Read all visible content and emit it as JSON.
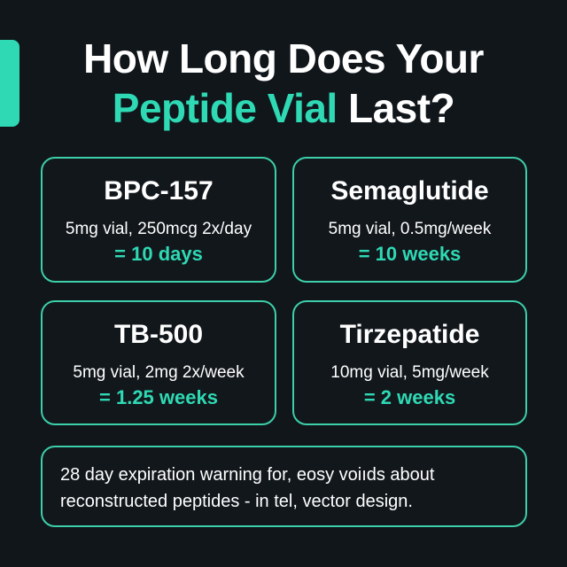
{
  "header": {
    "title_line1": "How Long Does Your",
    "title_line2_accent": "Peptide Vial",
    "title_line2_rest": " Last?"
  },
  "cards": [
    {
      "name": "BPC-157",
      "detail": "5mg vial, 250mcg 2x/day",
      "result": "= 10 days"
    },
    {
      "name": "Semaglutide",
      "detail": "5mg vial, 0.5mg/week",
      "result": "= 10 weeks"
    },
    {
      "name": "TB-500",
      "detail": "5mg vial, 2mg 2x/week",
      "result": "= 1.25 weeks"
    },
    {
      "name": "Tirzepatide",
      "detail": "10mg vial, 5mg/week",
      "result": "= 2 weeks"
    }
  ],
  "note": {
    "line1": "28 day expiration warning for, eosy voiıds about",
    "line2": "reconstructed peptides - in tel, vector design."
  },
  "colors": {
    "background": "#11161b",
    "accent": "#2ed9b4",
    "border": "#3ccfa9",
    "text": "#ffffff"
  }
}
